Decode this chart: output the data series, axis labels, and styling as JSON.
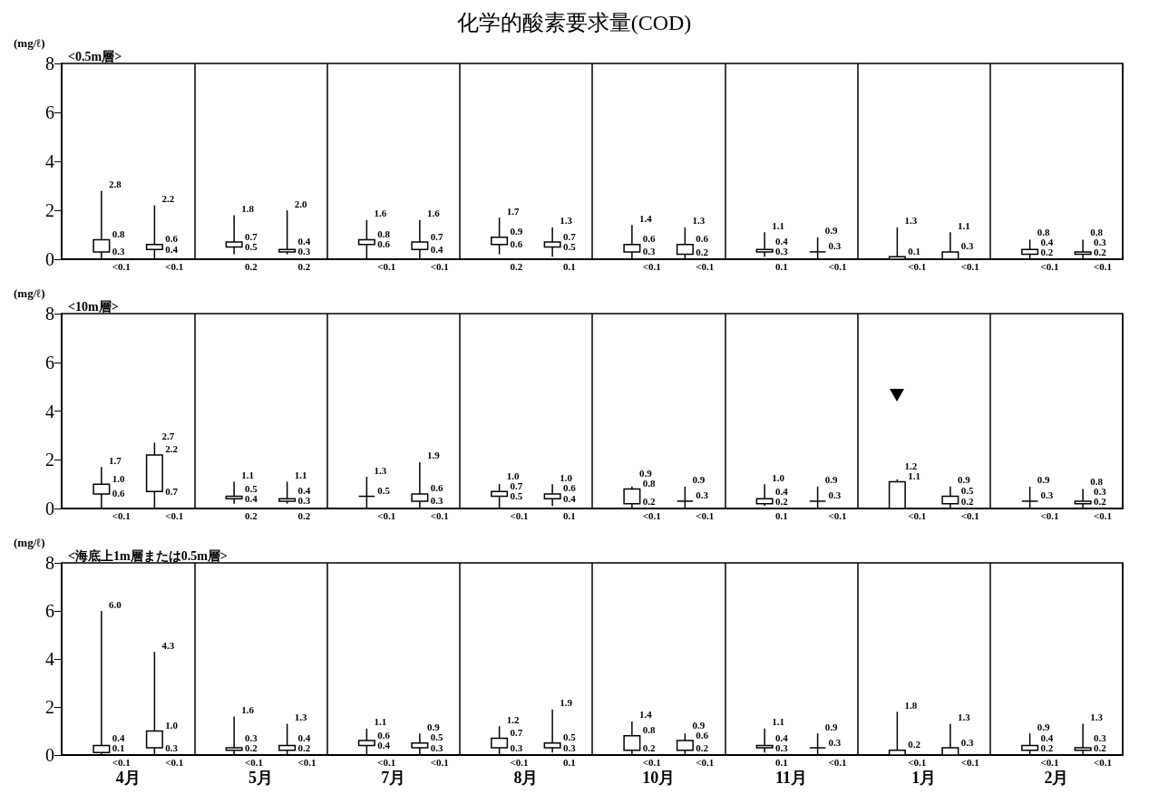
{
  "chart_data": [
    {
      "type": "box",
      "title": "化学的酸素要求量(COD)",
      "subtitle": "<0.5m層>",
      "ylabel": "(mg/ℓ)",
      "categories": [
        null,
        null,
        null,
        null,
        null,
        null,
        null,
        null
      ],
      "ylim": [
        0,
        8
      ],
      "yticks": [
        0,
        2,
        4,
        6,
        8
      ],
      "grid": "x",
      "tick_labels": "y",
      "series": [
        {
          "color": "#000000",
          "boxes": [
            {
              "low": 0,
              "q1": 0.3,
              "q3": 0.8,
              "high": 2.8
            },
            {
              "low": 0.2,
              "q1": 0.5,
              "q3": 0.7,
              "high": 1.8
            },
            {
              "low": 0,
              "q1": 0.6,
              "q3": 0.8,
              "high": 1.6
            },
            {
              "low": 0.2,
              "q1": 0.6,
              "q3": 0.9,
              "high": 1.7
            },
            {
              "low": 0,
              "q1": 0.3,
              "q3": 0.6,
              "high": 1.4
            },
            {
              "low": 0.1,
              "q1": 0.3,
              "q3": 0.4,
              "high": 1.1
            },
            {
              "low": 0,
              "q1": 0,
              "q3": 0.1,
              "high": 1.3
            },
            {
              "low": 0,
              "q1": 0.2,
              "q3": 0.4,
              "high": 0.8
            }
          ],
          "value_labels": [
            [
              "2.8",
              "0.8",
              "0.3",
              "<0.1"
            ],
            [
              "1.8",
              "0.7",
              "0.5",
              "0.2"
            ],
            [
              "1.6",
              "0.8",
              "0.6",
              "<0.1"
            ],
            [
              "1.7",
              "0.9",
              "0.6",
              "0.2"
            ],
            [
              "1.4",
              "0.6",
              "0.3",
              "<0.1"
            ],
            [
              "1.1",
              "0.4",
              "0.3",
              "0.1"
            ],
            [
              "1.3",
              "0.1",
              null,
              "<0.1"
            ],
            [
              "0.8",
              "0.4",
              "0.2",
              "<0.1"
            ]
          ]
        },
        {
          "color": "#000000",
          "boxes": [
            {
              "low": 0,
              "q1": 0.4,
              "q3": 0.6,
              "high": 2.2
            },
            {
              "low": 0.2,
              "q1": 0.3,
              "q3": 0.4,
              "high": 2.0
            },
            {
              "low": 0,
              "q1": 0.4,
              "q3": 0.7,
              "high": 1.6
            },
            {
              "low": 0.1,
              "q1": 0.5,
              "q3": 0.7,
              "high": 1.3
            },
            {
              "low": 0,
              "q1": 0.2,
              "q3": 0.6,
              "high": 1.3
            },
            {
              "low": 0,
              "q1": 0.3,
              "q3": 0.3,
              "high": 0.9
            },
            {
              "low": 0,
              "q1": 0,
              "q3": 0.3,
              "high": 1.1
            },
            {
              "low": 0,
              "q1": 0.2,
              "q3": 0.3,
              "high": 0.8
            }
          ],
          "value_labels": [
            [
              "2.2",
              "0.6",
              "0.4",
              "<0.1"
            ],
            [
              "2.0",
              "0.4",
              "0.3",
              "0.2"
            ],
            [
              "1.6",
              "0.7",
              "0.4",
              "<0.1"
            ],
            [
              "1.3",
              "0.7",
              "0.5",
              "0.1"
            ],
            [
              "1.3",
              "0.6",
              "0.2",
              "<0.1"
            ],
            [
              "0.9",
              "0.3",
              null,
              "<0.1"
            ],
            [
              "1.1",
              "0.3",
              null,
              "<0.1"
            ],
            [
              "0.8",
              "0.3",
              "0.2",
              "<0.1"
            ]
          ]
        }
      ]
    },
    {
      "type": "box",
      "subtitle": "<10m層>",
      "ylabel": "(mg/ℓ)",
      "categories": [
        null,
        null,
        null,
        null,
        null,
        null,
        null,
        null
      ],
      "ylim": [
        0,
        8
      ],
      "yticks": [
        0,
        2,
        4,
        6,
        8
      ],
      "grid": "x",
      "tick_labels": "y",
      "series": [
        {
          "color": "#000000",
          "boxes": [
            {
              "low": 0,
              "q1": 0.6,
              "q3": 1.0,
              "high": 1.7
            },
            {
              "low": 0.2,
              "q1": 0.4,
              "q3": 0.5,
              "high": 1.1
            },
            {
              "low": 0,
              "q1": 0.5,
              "q3": 0.5,
              "high": 1.3
            },
            {
              "low": 0,
              "q1": 0.5,
              "q3": 0.7,
              "high": 1.0
            },
            {
              "low": 0,
              "q1": 0.2,
              "q3": 0.8,
              "high": 0.9
            },
            {
              "low": 0.1,
              "q1": 0.2,
              "q3": 0.4,
              "high": 1.0
            },
            {
              "low": 0,
              "q1": 0,
              "q3": 1.1,
              "high": 1.2
            },
            {
              "low": 0,
              "q1": 0.3,
              "q3": 0.3,
              "high": 0.9
            }
          ],
          "value_labels": [
            [
              "1.7",
              "1.0",
              "0.6",
              "<0.1"
            ],
            [
              "1.1",
              "0.5",
              "0.4",
              "0.2"
            ],
            [
              "1.3",
              "0.5",
              null,
              "<0.1"
            ],
            [
              "1.0",
              "0.7",
              "0.5",
              "<0.1"
            ],
            [
              "0.9",
              "0.8",
              "0.2",
              "<0.1"
            ],
            [
              "1.0",
              "0.4",
              "0.2",
              "0.1"
            ],
            [
              "1.2",
              "1.1",
              null,
              "<0.1"
            ],
            [
              "0.9",
              "0.3",
              null,
              "<0.1"
            ]
          ]
        },
        {
          "color": "#000000",
          "boxes": [
            {
              "low": 0,
              "q1": 0.7,
              "q3": 2.2,
              "high": 2.7
            },
            {
              "low": 0.2,
              "q1": 0.3,
              "q3": 0.4,
              "high": 1.1
            },
            {
              "low": 0,
              "q1": 0.3,
              "q3": 0.6,
              "high": 1.9
            },
            {
              "low": 0.1,
              "q1": 0.4,
              "q3": 0.6,
              "high": 1.0
            },
            {
              "low": 0,
              "q1": 0.3,
              "q3": 0.3,
              "high": 0.9
            },
            {
              "low": 0,
              "q1": 0.3,
              "q3": 0.3,
              "high": 0.9
            },
            {
              "low": 0,
              "q1": 0.2,
              "q3": 0.5,
              "high": 0.9
            },
            {
              "low": 0,
              "q1": 0.2,
              "q3": 0.3,
              "high": 0.8
            }
          ],
          "value_labels": [
            [
              "2.7",
              "2.2",
              "0.7",
              "<0.1"
            ],
            [
              "1.1",
              "0.4",
              "0.3",
              "0.2"
            ],
            [
              "1.9",
              "0.6",
              "0.3",
              "<0.1"
            ],
            [
              "1.0",
              "0.6",
              "0.4",
              "0.1"
            ],
            [
              "0.9",
              "0.3",
              null,
              "<0.1"
            ],
            [
              "0.9",
              "0.3",
              null,
              "<0.1"
            ],
            [
              "0.9",
              "0.5",
              "0.2",
              "<0.1"
            ],
            [
              "0.8",
              "0.3",
              "0.2",
              "<0.1"
            ]
          ]
        }
      ]
    },
    {
      "type": "box",
      "subtitle": "<海底上1m層または0.5m層>",
      "ylabel": "(mg/ℓ)",
      "categories": [
        "4月",
        "5月",
        "7月",
        "8月",
        "10月",
        "11月",
        "1月",
        "2月"
      ],
      "ylim": [
        0,
        8
      ],
      "yticks": [
        0,
        2,
        4,
        6,
        8
      ],
      "grid": "x",
      "series": [
        {
          "color": "#000000",
          "boxes": [
            {
              "low": 0,
              "q1": 0.1,
              "q3": 0.4,
              "high": 6.0
            },
            {
              "low": 0,
              "q1": 0.2,
              "q3": 0.3,
              "high": 1.6
            },
            {
              "low": 0,
              "q1": 0.4,
              "q3": 0.6,
              "high": 1.1
            },
            {
              "low": 0,
              "q1": 0.3,
              "q3": 0.7,
              "high": 1.2
            },
            {
              "low": 0,
              "q1": 0.2,
              "q3": 0.8,
              "high": 1.4
            },
            {
              "low": 0.1,
              "q1": 0.3,
              "q3": 0.4,
              "high": 1.1
            },
            {
              "low": 0,
              "q1": 0,
              "q3": 0.2,
              "high": 1.8
            },
            {
              "low": 0,
              "q1": 0.2,
              "q3": 0.4,
              "high": 0.9
            }
          ],
          "value_labels": [
            [
              "6.0",
              "0.4",
              "0.1",
              "<0.1"
            ],
            [
              "1.6",
              "0.3",
              "0.2",
              "<0.1"
            ],
            [
              "1.1",
              "0.6",
              "0.4",
              "<0.1"
            ],
            [
              "1.2",
              "0.7",
              "0.3",
              "<0.1"
            ],
            [
              "1.4",
              "0.8",
              "0.2",
              "<0.1"
            ],
            [
              "1.1",
              "0.4",
              "0.3",
              "0.1"
            ],
            [
              "1.8",
              "0.2",
              null,
              "<0.1"
            ],
            [
              "0.9",
              "0.4",
              "0.2",
              "<0.1"
            ]
          ]
        },
        {
          "color": "#000000",
          "boxes": [
            {
              "low": 0,
              "q1": 0.3,
              "q3": 1.0,
              "high": 4.3
            },
            {
              "low": 0,
              "q1": 0.2,
              "q3": 0.4,
              "high": 1.3
            },
            {
              "low": 0,
              "q1": 0.3,
              "q3": 0.5,
              "high": 0.9
            },
            {
              "low": 0.1,
              "q1": 0.3,
              "q3": 0.5,
              "high": 1.9
            },
            {
              "low": 0,
              "q1": 0.2,
              "q3": 0.6,
              "high": 0.9
            },
            {
              "low": 0,
              "q1": 0.3,
              "q3": 0.3,
              "high": 0.9
            },
            {
              "low": 0,
              "q1": 0,
              "q3": 0.3,
              "high": 1.3
            },
            {
              "low": 0,
              "q1": 0.2,
              "q3": 0.3,
              "high": 1.3
            }
          ],
          "value_labels": [
            [
              "4.3",
              "1.0",
              "0.3",
              "<0.1"
            ],
            [
              "1.3",
              "0.4",
              "0.2",
              "<0.1"
            ],
            [
              "0.9",
              "0.5",
              "0.3",
              "<0.1"
            ],
            [
              "1.9",
              "0.5",
              "0.3",
              "0.1"
            ],
            [
              "0.9",
              "0.6",
              "0.2",
              "<0.1"
            ],
            [
              "0.9",
              "0.3",
              null,
              "<0.1"
            ],
            [
              "1.3",
              "0.3",
              null,
              "<0.1"
            ],
            [
              "1.3",
              "0.3",
              "0.2",
              "<0.1"
            ]
          ]
        }
      ]
    }
  ]
}
